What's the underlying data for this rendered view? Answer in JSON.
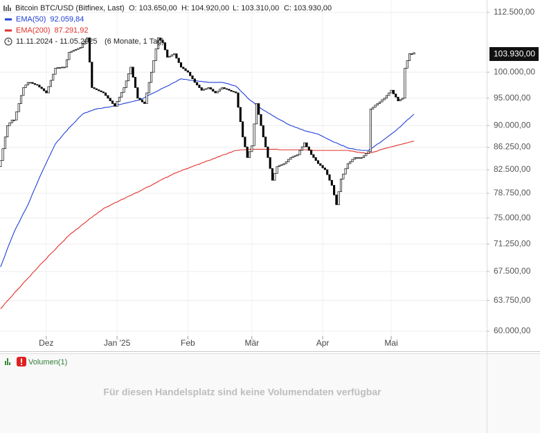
{
  "chart_data": {
    "type": "candlestick",
    "title": "Bitcoin BTC/USD (Bitfinex, Last)",
    "ohlc_labels": [
      "O: 103.650,00",
      "H: 104.920,00",
      "L: 103.310,00",
      "C: 103.930,00"
    ],
    "date_range": "11.11.2024 - 11.05.2025",
    "range_note": "(6 Monate, 1 Tag)",
    "last_price_label": "103.930,00",
    "color_up": "#ffffff",
    "color_down": "#000000",
    "ylog": true,
    "grid": true,
    "ylim": [
      59430,
      115300
    ],
    "yticks": [
      {
        "value": 112500,
        "label": "112.500,00"
      },
      {
        "value": 100000,
        "label": "100.000,00"
      },
      {
        "value": 95000,
        "label": "95.000,00"
      },
      {
        "value": 90000,
        "label": "90.000,00"
      },
      {
        "value": 86250,
        "label": "86.250,00"
      },
      {
        "value": 82500,
        "label": "82.500,00"
      },
      {
        "value": 78750,
        "label": "78.750,00"
      },
      {
        "value": 75000,
        "label": "75.000,00"
      },
      {
        "value": 71250,
        "label": "71.250,00"
      },
      {
        "value": 67500,
        "label": "67.500,00"
      },
      {
        "value": 63750,
        "label": "63.750,00"
      },
      {
        "value": 60000,
        "label": "60.000,00"
      }
    ],
    "categories": [
      null,
      null,
      null,
      null,
      null,
      null,
      null,
      null,
      null,
      null,
      null,
      null,
      null,
      null,
      null,
      null,
      null,
      null,
      null,
      null,
      "Dez",
      null,
      null,
      null,
      null,
      null,
      null,
      null,
      null,
      null,
      null,
      null,
      null,
      null,
      null,
      null,
      null,
      null,
      null,
      null,
      null,
      null,
      null,
      null,
      null,
      null,
      null,
      null,
      null,
      null,
      null,
      "Jan '25",
      null,
      null,
      null,
      null,
      null,
      null,
      null,
      null,
      null,
      null,
      null,
      null,
      null,
      null,
      null,
      null,
      null,
      null,
      null,
      null,
      null,
      null,
      null,
      null,
      null,
      null,
      null,
      null,
      null,
      null,
      "Feb",
      null,
      null,
      null,
      null,
      null,
      null,
      null,
      null,
      null,
      null,
      null,
      null,
      null,
      null,
      null,
      null,
      null,
      null,
      null,
      null,
      null,
      null,
      null,
      null,
      null,
      null,
      null,
      "Mär",
      null,
      null,
      null,
      null,
      null,
      null,
      null,
      null,
      null,
      null,
      null,
      null,
      null,
      null,
      null,
      null,
      null,
      null,
      null,
      null,
      null,
      null,
      null,
      null,
      null,
      null,
      null,
      null,
      null,
      null,
      "Apr",
      null,
      null,
      null,
      null,
      null,
      null,
      null,
      null,
      null,
      null,
      null,
      null,
      null,
      null,
      null,
      null,
      null,
      null,
      null,
      null,
      null,
      null,
      null,
      null,
      null,
      null,
      null,
      null,
      null,
      "Mai",
      null,
      null,
      null,
      null,
      null,
      null,
      null,
      null,
      null,
      null
    ],
    "open": [
      83000,
      84000,
      86000,
      88000,
      90000,
      90500,
      91000,
      91000,
      92500,
      94000,
      95500,
      97000,
      97500,
      98000,
      98000,
      97800,
      97600,
      97500,
      97100,
      96800,
      96400,
      96000,
      97200,
      98400,
      99600,
      100800,
      100900,
      100900,
      101000,
      101000,
      102500,
      104000,
      104200,
      104400,
      104600,
      104800,
      105000,
      105700,
      106300,
      107000,
      102000,
      97000,
      96800,
      96600,
      96400,
      96200,
      96000,
      95500,
      95000,
      94500,
      94000,
      93500,
      94400,
      95200,
      96100,
      97000,
      98300,
      99700,
      101000,
      99000,
      97000,
      95000,
      94700,
      94300,
      94000,
      96000,
      98000,
      100000,
      102300,
      104700,
      107000,
      106500,
      106000,
      104500,
      103000,
      103200,
      103500,
      103700,
      102800,
      101900,
      101000,
      100700,
      100300,
      100000,
      99300,
      98700,
      98000,
      97500,
      97000,
      96500,
      96700,
      96800,
      97000,
      96700,
      96300,
      96000,
      96300,
      96700,
      97000,
      96800,
      96700,
      96500,
      96300,
      96200,
      96000,
      93300,
      90700,
      88000,
      86300,
      84500,
      85500,
      86500,
      90300,
      94000,
      92000,
      90000,
      88000,
      86300,
      84500,
      82700,
      80800,
      81900,
      83000,
      83200,
      83300,
      83500,
      83800,
      84200,
      84500,
      84700,
      84800,
      85000,
      85700,
      86300,
      87000,
      86300,
      85700,
      85000,
      84500,
      84000,
      83500,
      83200,
      82800,
      82500,
      81700,
      80800,
      80000,
      78500,
      77000,
      79000,
      81000,
      81800,
      82700,
      83500,
      83800,
      84200,
      84500,
      84500,
      84500,
      84500,
      84800,
      85200,
      85500,
      93000,
      93300,
      93700,
      94000,
      94300,
      94700,
      95000,
      95500,
      96000,
      96500,
      95800,
      95200,
      94500,
      94800,
      95000,
      100800,
      102300,
      103700,
      103650
    ],
    "close": [
      84000,
      86000,
      88000,
      90000,
      90500,
      91000,
      91000,
      92500,
      94000,
      95500,
      97000,
      97500,
      98000,
      98000,
      97800,
      97600,
      97500,
      97100,
      96800,
      96400,
      96000,
      97200,
      98400,
      99600,
      100800,
      100900,
      100900,
      101000,
      101000,
      102500,
      104000,
      104200,
      104400,
      104600,
      104800,
      105000,
      105700,
      106300,
      107000,
      102000,
      97000,
      96800,
      96600,
      96400,
      96200,
      96000,
      95500,
      95000,
      94500,
      94000,
      93500,
      94400,
      95200,
      96100,
      97000,
      98300,
      99700,
      101000,
      99000,
      97000,
      95000,
      94700,
      94300,
      94000,
      96000,
      98000,
      100000,
      102300,
      104700,
      107000,
      106500,
      106000,
      104500,
      103000,
      103200,
      103500,
      103700,
      102800,
      101900,
      101000,
      100700,
      100300,
      100000,
      99300,
      98700,
      98000,
      97500,
      97000,
      96500,
      96700,
      96800,
      97000,
      96700,
      96300,
      96000,
      96300,
      96700,
      97000,
      96800,
      96700,
      96500,
      96300,
      96200,
      96000,
      93300,
      90700,
      88000,
      86300,
      84500,
      85500,
      86500,
      90300,
      94000,
      92000,
      90000,
      88000,
      86300,
      84500,
      82700,
      80800,
      81900,
      83000,
      83200,
      83300,
      83500,
      83800,
      84200,
      84500,
      84700,
      84800,
      85000,
      85700,
      86300,
      87000,
      86300,
      85700,
      85000,
      84500,
      84000,
      83500,
      83200,
      82800,
      82500,
      81700,
      80800,
      80000,
      78500,
      77000,
      79000,
      81000,
      81800,
      82700,
      83500,
      83800,
      84200,
      84500,
      84500,
      84500,
      84500,
      84800,
      85200,
      85500,
      93000,
      93300,
      93700,
      94000,
      94300,
      94700,
      95000,
      95500,
      96000,
      96500,
      95800,
      95200,
      94500,
      94800,
      95000,
      100800,
      102300,
      103700,
      103650,
      103930
    ],
    "series": [
      {
        "name": "EMA(50)",
        "color": "#1f3fd6",
        "value_label": "92.059,84",
        "values": [
          68100,
          68900,
          69700,
          70600,
          71400,
          72200,
          73000,
          73700,
          74300,
          75000,
          75700,
          76300,
          77000,
          77800,
          78700,
          79500,
          80300,
          81200,
          82000,
          82800,
          83600,
          84400,
          85200,
          86000,
          86800,
          87300,
          87700,
          88200,
          88700,
          89100,
          89600,
          90000,
          90400,
          90800,
          91300,
          91700,
          92100,
          92300,
          92400,
          92600,
          92700,
          92900,
          93000,
          93100,
          93100,
          93200,
          93300,
          93300,
          93400,
          93500,
          93600,
          93700,
          93800,
          93900,
          94000,
          94100,
          94200,
          94300,
          94400,
          94500,
          94600,
          94700,
          94900,
          95100,
          95400,
          95600,
          95800,
          96000,
          96200,
          96400,
          96700,
          96900,
          97100,
          97300,
          97500,
          97800,
          98000,
          98200,
          98500,
          98700,
          98600,
          98600,
          98500,
          98400,
          98400,
          98300,
          98300,
          98200,
          98200,
          98100,
          98100,
          98000,
          98000,
          98000,
          98000,
          98000,
          98000,
          98000,
          97900,
          97800,
          97700,
          97500,
          97400,
          97300,
          96900,
          96400,
          96000,
          95600,
          95100,
          94700,
          94400,
          94100,
          93700,
          93400,
          93100,
          92800,
          92600,
          92300,
          92100,
          91800,
          91600,
          91300,
          91100,
          90900,
          90700,
          90400,
          90200,
          90000,
          89900,
          89700,
          89600,
          89400,
          89300,
          89100,
          89000,
          88900,
          88800,
          88700,
          88600,
          88500,
          88300,
          88100,
          87900,
          87700,
          87500,
          87300,
          87100,
          87000,
          86800,
          86600,
          86500,
          86300,
          86100,
          86000,
          86000,
          85900,
          85800,
          85800,
          85700,
          85700,
          85700,
          85700,
          86000,
          86200,
          86500,
          86800,
          87000,
          87300,
          87600,
          87900,
          88200,
          88500,
          88800,
          89100,
          89500,
          89800,
          90200,
          90600,
          91000,
          91300,
          91700,
          92059.84
        ]
      },
      {
        "name": "EMA(200)",
        "color": "#e0302a",
        "value_label": "87.291,92",
        "values": [
          62700,
          63000,
          63400,
          63700,
          64000,
          64300,
          64700,
          65000,
          65300,
          65600,
          66000,
          66300,
          66600,
          66900,
          67300,
          67600,
          67900,
          68300,
          68600,
          68900,
          69200,
          69600,
          69900,
          70200,
          70500,
          70900,
          71200,
          71500,
          71800,
          72200,
          72500,
          72800,
          73000,
          73300,
          73500,
          73800,
          74100,
          74300,
          74600,
          74900,
          75100,
          75400,
          75600,
          75900,
          76100,
          76400,
          76600,
          76700,
          76900,
          77100,
          77300,
          77400,
          77600,
          77800,
          77900,
          78100,
          78300,
          78400,
          78600,
          78800,
          78900,
          79100,
          79300,
          79500,
          79700,
          79800,
          80000,
          80200,
          80400,
          80600,
          80800,
          81000,
          81200,
          81300,
          81500,
          81700,
          81900,
          82000,
          82200,
          82300,
          82500,
          82600,
          82700,
          82900,
          83000,
          83200,
          83300,
          83400,
          83600,
          83700,
          83900,
          84000,
          84100,
          84300,
          84400,
          84600,
          84700,
          84900,
          85000,
          85100,
          85300,
          85400,
          85600,
          85700,
          85700,
          85800,
          85800,
          85800,
          85900,
          85900,
          85900,
          85900,
          85900,
          85900,
          85900,
          85900,
          85900,
          85900,
          85900,
          85900,
          85900,
          85900,
          85800,
          85800,
          85800,
          85800,
          85800,
          85800,
          85800,
          85800,
          85800,
          85800,
          85800,
          85800,
          85800,
          85800,
          85800,
          85700,
          85700,
          85700,
          85700,
          85700,
          85700,
          85700,
          85700,
          85700,
          85700,
          85700,
          85700,
          85700,
          85700,
          85700,
          85700,
          85600,
          85600,
          85500,
          85400,
          85400,
          85300,
          85300,
          85200,
          85200,
          85300,
          85400,
          85500,
          85600,
          85800,
          85900,
          86000,
          86100,
          86200,
          86300,
          86400,
          86500,
          86600,
          86700,
          86800,
          86900,
          87000,
          87100,
          87200,
          87291.92
        ]
      }
    ],
    "volume_panel": {
      "title": "Volumen(1)",
      "message": "Für diesen Handelsplatz sind keine Volumendaten verfügbar"
    }
  }
}
